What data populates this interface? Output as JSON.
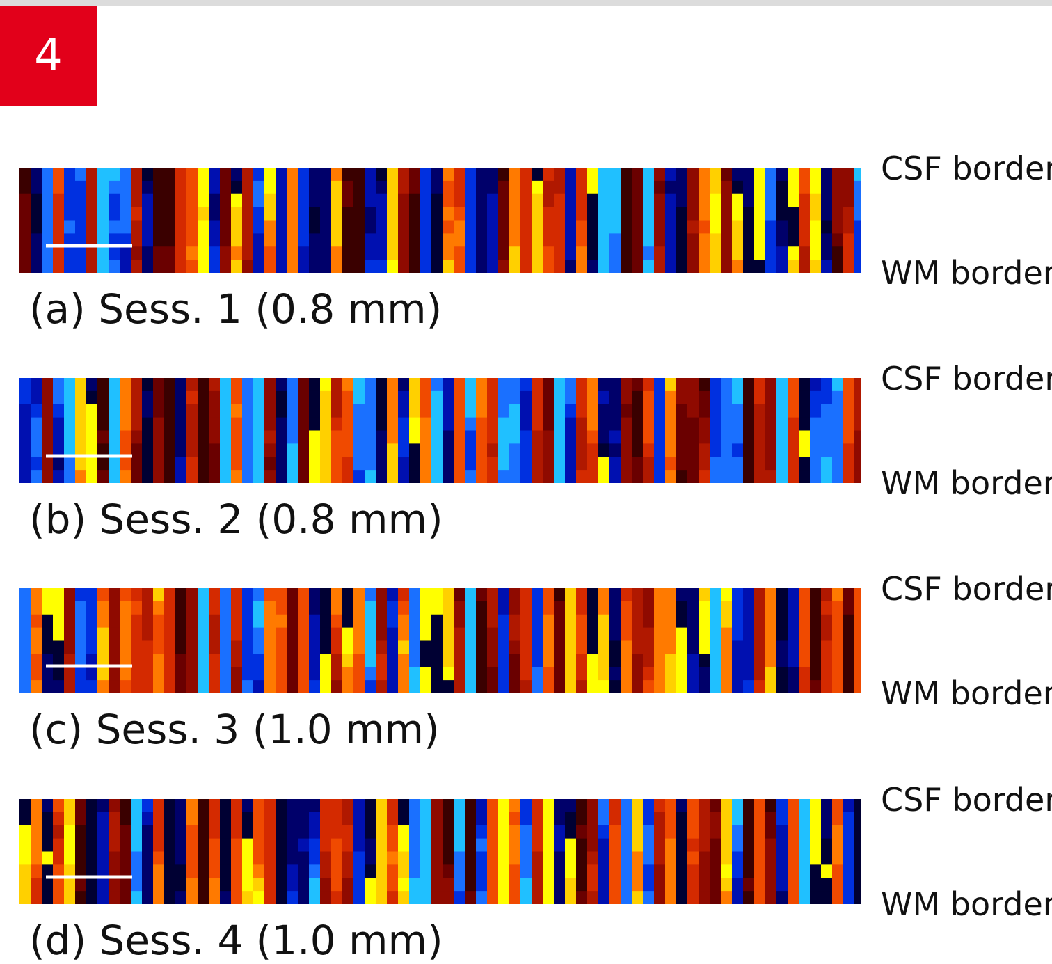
{
  "slide_number": "4",
  "panels": [
    {
      "caption": "(a) Sess. 1 (0.8 mm)",
      "top_label": "CSF border",
      "bottom_label": "WM border"
    },
    {
      "caption": "(b) Sess. 2 (0.8 mm)",
      "top_label": "CSF border",
      "bottom_label": "WM border"
    },
    {
      "caption": "(c) Sess. 3 (1.0 mm)",
      "top_label": "CSF border",
      "bottom_label": "WM border"
    },
    {
      "caption": "(d) Sess. 4 (1.0 mm)",
      "top_label": "CSF border",
      "bottom_label": "WM border"
    }
  ]
}
